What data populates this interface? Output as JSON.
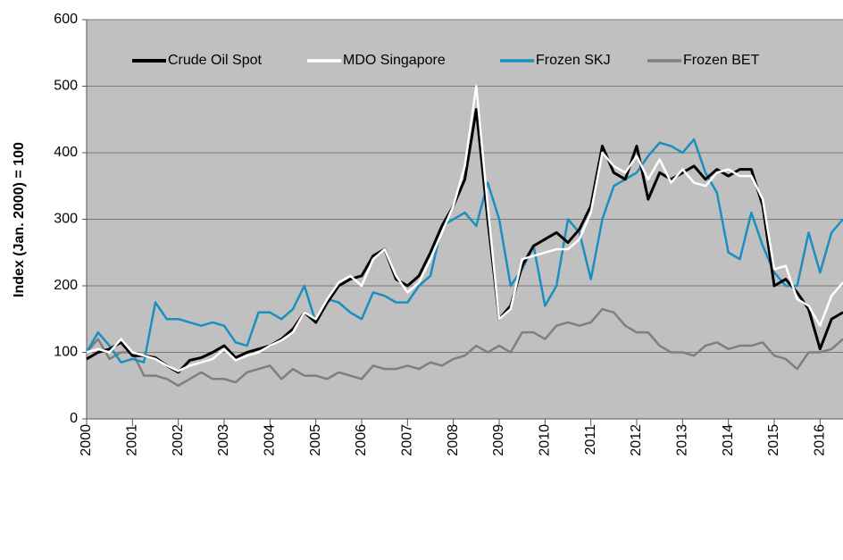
{
  "chart_data": {
    "type": "line",
    "y_label": "Index (Jan. 2000) = 100",
    "x": [
      2000,
      2000.25,
      2000.5,
      2000.75,
      2001,
      2001.25,
      2001.5,
      2001.75,
      2002,
      2002.25,
      2002.5,
      2002.75,
      2003,
      2003.25,
      2003.5,
      2003.75,
      2004,
      2004.25,
      2004.5,
      2004.75,
      2005,
      2005.25,
      2005.5,
      2005.75,
      2006,
      2006.25,
      2006.5,
      2006.75,
      2007,
      2007.25,
      2007.5,
      2007.75,
      2008,
      2008.25,
      2008.5,
      2008.75,
      2009,
      2009.25,
      2009.5,
      2009.75,
      2010,
      2010.25,
      2010.5,
      2010.75,
      2011,
      2011.25,
      2011.5,
      2011.75,
      2012,
      2012.25,
      2012.5,
      2012.75,
      2013,
      2013.25,
      2013.5,
      2013.75,
      2014,
      2014.25,
      2014.5,
      2014.75,
      2015,
      2015.25,
      2015.5,
      2015.75,
      2016,
      2016.25,
      2016.5
    ],
    "series": [
      {
        "name": "Crude Oil Spot",
        "color": "#000000",
        "values": [
          90,
          100,
          105,
          115,
          95,
          95,
          92,
          80,
          70,
          88,
          92,
          100,
          110,
          92,
          100,
          105,
          110,
          120,
          135,
          160,
          145,
          175,
          200,
          210,
          215,
          245,
          255,
          210,
          200,
          215,
          250,
          290,
          320,
          360,
          465,
          300,
          150,
          170,
          230,
          260,
          270,
          280,
          265,
          285,
          320,
          410,
          370,
          360,
          410,
          330,
          370,
          360,
          370,
          380,
          360,
          375,
          365,
          375,
          375,
          320,
          200,
          210,
          190,
          165,
          105,
          150,
          160
        ]
      },
      {
        "name": "MDO Singapore",
        "color": "#ffffff",
        "values": [
          100,
          105,
          100,
          120,
          100,
          95,
          90,
          80,
          72,
          80,
          85,
          90,
          105,
          88,
          95,
          100,
          110,
          118,
          130,
          160,
          150,
          180,
          205,
          215,
          200,
          240,
          255,
          215,
          190,
          205,
          240,
          280,
          320,
          380,
          500,
          320,
          150,
          165,
          240,
          245,
          250,
          255,
          255,
          270,
          310,
          400,
          380,
          370,
          395,
          360,
          390,
          355,
          375,
          355,
          350,
          370,
          375,
          365,
          365,
          330,
          225,
          230,
          180,
          170,
          140,
          185,
          205
        ]
      },
      {
        "name": "Frozen SKJ",
        "color": "#1a8fc0",
        "values": [
          100,
          130,
          110,
          85,
          90,
          85,
          175,
          150,
          150,
          145,
          140,
          145,
          140,
          115,
          110,
          160,
          160,
          150,
          165,
          200,
          145,
          180,
          175,
          160,
          150,
          190,
          185,
          175,
          175,
          200,
          215,
          290,
          300,
          310,
          290,
          355,
          300,
          200,
          225,
          260,
          170,
          200,
          300,
          280,
          210,
          300,
          350,
          360,
          370,
          395,
          415,
          410,
          400,
          420,
          370,
          340,
          250,
          240,
          310,
          260,
          220,
          200,
          200,
          280,
          220,
          280,
          300
        ]
      },
      {
        "name": "Frozen BET",
        "color": "#7f7f7f",
        "values": [
          100,
          120,
          90,
          100,
          100,
          65,
          65,
          60,
          50,
          60,
          70,
          60,
          60,
          55,
          70,
          75,
          80,
          60,
          75,
          65,
          65,
          60,
          70,
          65,
          60,
          80,
          75,
          75,
          80,
          75,
          85,
          80,
          90,
          95,
          110,
          100,
          110,
          100,
          130,
          130,
          120,
          140,
          145,
          140,
          145,
          165,
          160,
          140,
          130,
          130,
          110,
          100,
          100,
          95,
          110,
          115,
          105,
          110,
          110,
          115,
          95,
          90,
          75,
          100,
          100,
          105,
          120
        ]
      }
    ],
    "xlim": [
      2000,
      2016.5
    ],
    "xticks": [
      2000,
      2001,
      2002,
      2003,
      2004,
      2005,
      2006,
      2007,
      2008,
      2009,
      2010,
      2011,
      2012,
      2013,
      2014,
      2015,
      2016
    ],
    "ylim": [
      0,
      600
    ],
    "yticks": [
      0,
      100,
      200,
      300,
      400,
      500,
      600
    ],
    "grid": true,
    "legend": "top"
  }
}
